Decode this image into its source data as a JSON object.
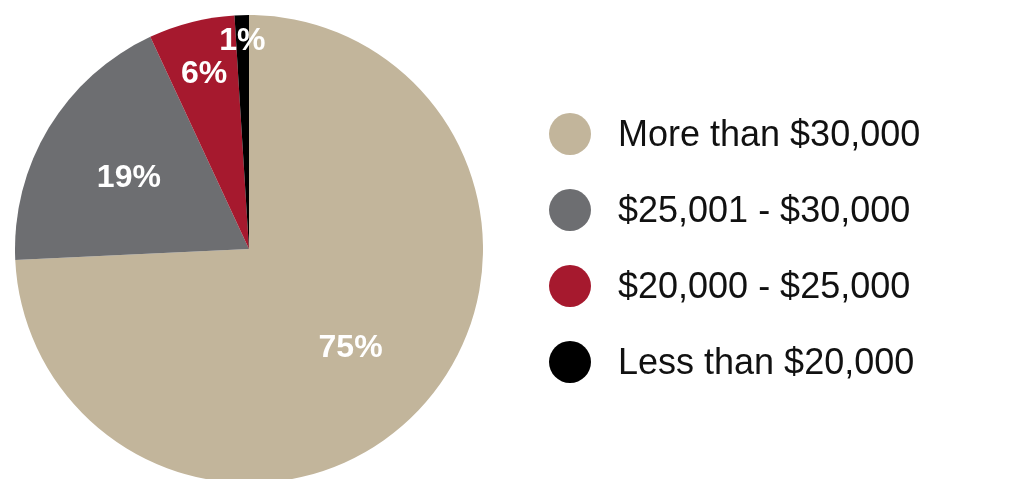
{
  "chart_data": {
    "type": "pie",
    "categories": [
      "More than $30,000",
      "$25,001 - $30,000",
      "$20,000 - $25,000",
      "Less than $20,000"
    ],
    "values": [
      75,
      19,
      6,
      1
    ],
    "colors": [
      "#c2b59b",
      "#6d6e71",
      "#a6192e",
      "#000000"
    ],
    "value_labels": [
      "75%",
      "19%",
      "6%",
      "1%"
    ],
    "legend": "right"
  }
}
